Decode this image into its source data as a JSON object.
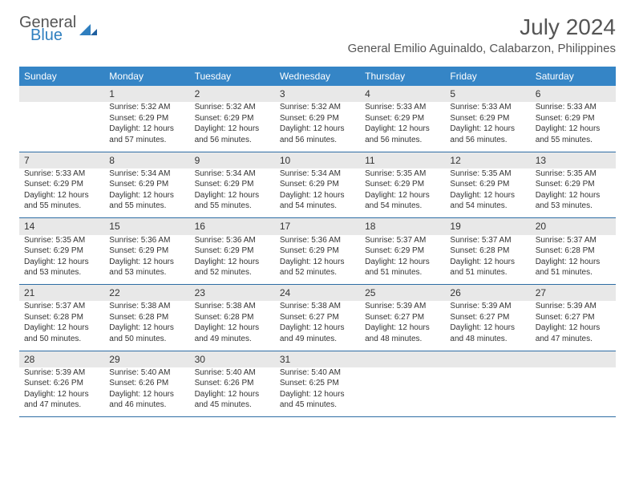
{
  "brand": {
    "general": "General",
    "blue": "Blue"
  },
  "header": {
    "month_title": "July 2024",
    "location": "General Emilio Aguinaldo, Calabarzon, Philippines"
  },
  "colors": {
    "header_bg": "#3585c6",
    "header_text": "#ffffff",
    "daynum_bg": "#e8e8e8",
    "row_border": "#2e6da4",
    "text": "#333333",
    "brand_gray": "#555555",
    "brand_blue": "#2f7fbf"
  },
  "typography": {
    "month_title_fontsize": 28,
    "location_fontsize": 15,
    "dayheader_fontsize": 12,
    "daynum_fontsize": 12,
    "details_fontsize": 10
  },
  "day_headers": [
    "Sunday",
    "Monday",
    "Tuesday",
    "Wednesday",
    "Thursday",
    "Friday",
    "Saturday"
  ],
  "weeks": [
    [
      null,
      {
        "num": "1",
        "sunrise": "Sunrise: 5:32 AM",
        "sunset": "Sunset: 6:29 PM",
        "day1": "Daylight: 12 hours",
        "day2": "and 57 minutes."
      },
      {
        "num": "2",
        "sunrise": "Sunrise: 5:32 AM",
        "sunset": "Sunset: 6:29 PM",
        "day1": "Daylight: 12 hours",
        "day2": "and 56 minutes."
      },
      {
        "num": "3",
        "sunrise": "Sunrise: 5:32 AM",
        "sunset": "Sunset: 6:29 PM",
        "day1": "Daylight: 12 hours",
        "day2": "and 56 minutes."
      },
      {
        "num": "4",
        "sunrise": "Sunrise: 5:33 AM",
        "sunset": "Sunset: 6:29 PM",
        "day1": "Daylight: 12 hours",
        "day2": "and 56 minutes."
      },
      {
        "num": "5",
        "sunrise": "Sunrise: 5:33 AM",
        "sunset": "Sunset: 6:29 PM",
        "day1": "Daylight: 12 hours",
        "day2": "and 56 minutes."
      },
      {
        "num": "6",
        "sunrise": "Sunrise: 5:33 AM",
        "sunset": "Sunset: 6:29 PM",
        "day1": "Daylight: 12 hours",
        "day2": "and 55 minutes."
      }
    ],
    [
      {
        "num": "7",
        "sunrise": "Sunrise: 5:33 AM",
        "sunset": "Sunset: 6:29 PM",
        "day1": "Daylight: 12 hours",
        "day2": "and 55 minutes."
      },
      {
        "num": "8",
        "sunrise": "Sunrise: 5:34 AM",
        "sunset": "Sunset: 6:29 PM",
        "day1": "Daylight: 12 hours",
        "day2": "and 55 minutes."
      },
      {
        "num": "9",
        "sunrise": "Sunrise: 5:34 AM",
        "sunset": "Sunset: 6:29 PM",
        "day1": "Daylight: 12 hours",
        "day2": "and 55 minutes."
      },
      {
        "num": "10",
        "sunrise": "Sunrise: 5:34 AM",
        "sunset": "Sunset: 6:29 PM",
        "day1": "Daylight: 12 hours",
        "day2": "and 54 minutes."
      },
      {
        "num": "11",
        "sunrise": "Sunrise: 5:35 AM",
        "sunset": "Sunset: 6:29 PM",
        "day1": "Daylight: 12 hours",
        "day2": "and 54 minutes."
      },
      {
        "num": "12",
        "sunrise": "Sunrise: 5:35 AM",
        "sunset": "Sunset: 6:29 PM",
        "day1": "Daylight: 12 hours",
        "day2": "and 54 minutes."
      },
      {
        "num": "13",
        "sunrise": "Sunrise: 5:35 AM",
        "sunset": "Sunset: 6:29 PM",
        "day1": "Daylight: 12 hours",
        "day2": "and 53 minutes."
      }
    ],
    [
      {
        "num": "14",
        "sunrise": "Sunrise: 5:35 AM",
        "sunset": "Sunset: 6:29 PM",
        "day1": "Daylight: 12 hours",
        "day2": "and 53 minutes."
      },
      {
        "num": "15",
        "sunrise": "Sunrise: 5:36 AM",
        "sunset": "Sunset: 6:29 PM",
        "day1": "Daylight: 12 hours",
        "day2": "and 53 minutes."
      },
      {
        "num": "16",
        "sunrise": "Sunrise: 5:36 AM",
        "sunset": "Sunset: 6:29 PM",
        "day1": "Daylight: 12 hours",
        "day2": "and 52 minutes."
      },
      {
        "num": "17",
        "sunrise": "Sunrise: 5:36 AM",
        "sunset": "Sunset: 6:29 PM",
        "day1": "Daylight: 12 hours",
        "day2": "and 52 minutes."
      },
      {
        "num": "18",
        "sunrise": "Sunrise: 5:37 AM",
        "sunset": "Sunset: 6:29 PM",
        "day1": "Daylight: 12 hours",
        "day2": "and 51 minutes."
      },
      {
        "num": "19",
        "sunrise": "Sunrise: 5:37 AM",
        "sunset": "Sunset: 6:28 PM",
        "day1": "Daylight: 12 hours",
        "day2": "and 51 minutes."
      },
      {
        "num": "20",
        "sunrise": "Sunrise: 5:37 AM",
        "sunset": "Sunset: 6:28 PM",
        "day1": "Daylight: 12 hours",
        "day2": "and 51 minutes."
      }
    ],
    [
      {
        "num": "21",
        "sunrise": "Sunrise: 5:37 AM",
        "sunset": "Sunset: 6:28 PM",
        "day1": "Daylight: 12 hours",
        "day2": "and 50 minutes."
      },
      {
        "num": "22",
        "sunrise": "Sunrise: 5:38 AM",
        "sunset": "Sunset: 6:28 PM",
        "day1": "Daylight: 12 hours",
        "day2": "and 50 minutes."
      },
      {
        "num": "23",
        "sunrise": "Sunrise: 5:38 AM",
        "sunset": "Sunset: 6:28 PM",
        "day1": "Daylight: 12 hours",
        "day2": "and 49 minutes."
      },
      {
        "num": "24",
        "sunrise": "Sunrise: 5:38 AM",
        "sunset": "Sunset: 6:27 PM",
        "day1": "Daylight: 12 hours",
        "day2": "and 49 minutes."
      },
      {
        "num": "25",
        "sunrise": "Sunrise: 5:39 AM",
        "sunset": "Sunset: 6:27 PM",
        "day1": "Daylight: 12 hours",
        "day2": "and 48 minutes."
      },
      {
        "num": "26",
        "sunrise": "Sunrise: 5:39 AM",
        "sunset": "Sunset: 6:27 PM",
        "day1": "Daylight: 12 hours",
        "day2": "and 48 minutes."
      },
      {
        "num": "27",
        "sunrise": "Sunrise: 5:39 AM",
        "sunset": "Sunset: 6:27 PM",
        "day1": "Daylight: 12 hours",
        "day2": "and 47 minutes."
      }
    ],
    [
      {
        "num": "28",
        "sunrise": "Sunrise: 5:39 AM",
        "sunset": "Sunset: 6:26 PM",
        "day1": "Daylight: 12 hours",
        "day2": "and 47 minutes."
      },
      {
        "num": "29",
        "sunrise": "Sunrise: 5:40 AM",
        "sunset": "Sunset: 6:26 PM",
        "day1": "Daylight: 12 hours",
        "day2": "and 46 minutes."
      },
      {
        "num": "30",
        "sunrise": "Sunrise: 5:40 AM",
        "sunset": "Sunset: 6:26 PM",
        "day1": "Daylight: 12 hours",
        "day2": "and 45 minutes."
      },
      {
        "num": "31",
        "sunrise": "Sunrise: 5:40 AM",
        "sunset": "Sunset: 6:25 PM",
        "day1": "Daylight: 12 hours",
        "day2": "and 45 minutes."
      },
      null,
      null,
      null
    ]
  ]
}
